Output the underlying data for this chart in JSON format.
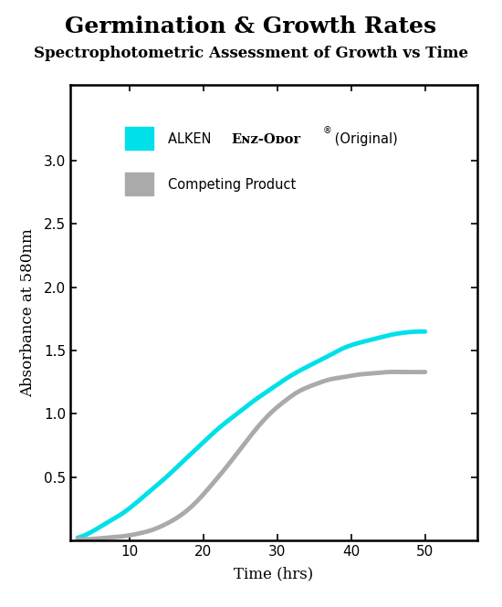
{
  "title": "Germination & Growth Rates",
  "subtitle": "Spectrophotometric Assessment of Growth vs Time",
  "xlabel": "Time (hrs)",
  "ylabel": "Absorbance at 580nm",
  "xlim": [
    2,
    57
  ],
  "ylim": [
    0,
    3.6
  ],
  "xticks": [
    10,
    20,
    30,
    40,
    50
  ],
  "yticks": [
    0.5,
    1.0,
    1.5,
    2.0,
    2.5,
    3.0
  ],
  "cyan_color": "#00E0E8",
  "gray_color": "#AAAAAA",
  "background_color": "#FFFFFF",
  "linewidth": 3.5,
  "title_fontsize": 18,
  "subtitle_fontsize": 12,
  "label_fontsize": 12,
  "tick_fontsize": 11,
  "cyan_x": [
    3,
    5,
    7,
    9,
    11,
    13,
    15,
    17,
    19,
    21,
    23,
    25,
    27,
    29,
    31,
    33,
    35,
    37,
    39,
    41,
    43,
    45,
    47,
    49,
    50
  ],
  "cyan_y": [
    0.02,
    0.07,
    0.14,
    0.21,
    0.3,
    0.4,
    0.5,
    0.61,
    0.72,
    0.83,
    0.93,
    1.02,
    1.11,
    1.19,
    1.27,
    1.34,
    1.4,
    1.46,
    1.52,
    1.56,
    1.59,
    1.62,
    1.64,
    1.65,
    1.65
  ],
  "gray_x": [
    3,
    5,
    7,
    9,
    11,
    13,
    15,
    17,
    19,
    21,
    23,
    25,
    27,
    29,
    31,
    33,
    35,
    37,
    39,
    41,
    43,
    45,
    47,
    49,
    50
  ],
  "gray_y": [
    0.01,
    0.01,
    0.02,
    0.03,
    0.05,
    0.08,
    0.13,
    0.2,
    0.3,
    0.43,
    0.57,
    0.72,
    0.87,
    1.0,
    1.1,
    1.18,
    1.23,
    1.27,
    1.29,
    1.31,
    1.32,
    1.33,
    1.33,
    1.33,
    1.33
  ]
}
